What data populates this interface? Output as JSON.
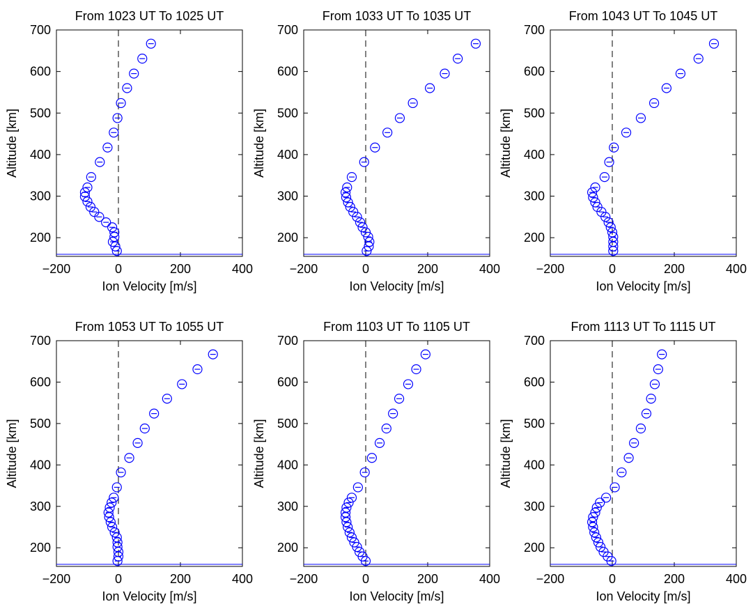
{
  "chart_data": [
    {
      "type": "scatter",
      "title": "From 1023 UT To 1025 UT",
      "xlabel": "Ion Velocity [m/s]",
      "ylabel": "Altitude [km]",
      "xlim": [
        -200,
        400
      ],
      "ylim": [
        155,
        700
      ],
      "xticks": [
        -200,
        0,
        200,
        400
      ],
      "yticks": [
        200,
        300,
        400,
        500,
        600,
        700
      ],
      "zero_line_x": 0,
      "baseline_y": 160,
      "marker": "open-circle-with-errorbar",
      "color": "#0000ff",
      "points": [
        {
          "x": 105,
          "y": 667
        },
        {
          "x": 77,
          "y": 631
        },
        {
          "x": 50,
          "y": 595
        },
        {
          "x": 28,
          "y": 560
        },
        {
          "x": 8,
          "y": 524
        },
        {
          "x": -3,
          "y": 488
        },
        {
          "x": -15,
          "y": 453
        },
        {
          "x": -35,
          "y": 417
        },
        {
          "x": -60,
          "y": 382
        },
        {
          "x": -88,
          "y": 346
        },
        {
          "x": -100,
          "y": 321
        },
        {
          "x": -108,
          "y": 309
        },
        {
          "x": -108,
          "y": 299
        },
        {
          "x": -100,
          "y": 287
        },
        {
          "x": -90,
          "y": 274
        },
        {
          "x": -78,
          "y": 262
        },
        {
          "x": -62,
          "y": 250
        },
        {
          "x": -40,
          "y": 237
        },
        {
          "x": -20,
          "y": 225
        },
        {
          "x": -13,
          "y": 213
        },
        {
          "x": -13,
          "y": 202
        },
        {
          "x": -18,
          "y": 190
        },
        {
          "x": -10,
          "y": 179
        },
        {
          "x": -5,
          "y": 168
        }
      ]
    },
    {
      "type": "scatter",
      "title": "From 1033 UT To 1035 UT",
      "xlabel": "Ion Velocity [m/s]",
      "ylabel": "Altitude [km]",
      "xlim": [
        -200,
        400
      ],
      "ylim": [
        155,
        700
      ],
      "xticks": [
        -200,
        0,
        200,
        400
      ],
      "yticks": [
        200,
        300,
        400,
        500,
        600,
        700
      ],
      "zero_line_x": 0,
      "baseline_y": 160,
      "marker": "open-circle-with-errorbar",
      "color": "#0000ff",
      "points": [
        {
          "x": 355,
          "y": 667
        },
        {
          "x": 297,
          "y": 631
        },
        {
          "x": 255,
          "y": 595
        },
        {
          "x": 207,
          "y": 560
        },
        {
          "x": 152,
          "y": 524
        },
        {
          "x": 110,
          "y": 488
        },
        {
          "x": 70,
          "y": 453
        },
        {
          "x": 30,
          "y": 417
        },
        {
          "x": -5,
          "y": 382
        },
        {
          "x": -45,
          "y": 346
        },
        {
          "x": -60,
          "y": 321
        },
        {
          "x": -65,
          "y": 309
        },
        {
          "x": -63,
          "y": 297
        },
        {
          "x": -57,
          "y": 285
        },
        {
          "x": -50,
          "y": 274
        },
        {
          "x": -40,
          "y": 262
        },
        {
          "x": -28,
          "y": 250
        },
        {
          "x": -18,
          "y": 237
        },
        {
          "x": -10,
          "y": 225
        },
        {
          "x": 0,
          "y": 213
        },
        {
          "x": 8,
          "y": 202
        },
        {
          "x": 12,
          "y": 190
        },
        {
          "x": 10,
          "y": 179
        },
        {
          "x": 3,
          "y": 168
        }
      ]
    },
    {
      "type": "scatter",
      "title": "From 1043 UT To 1045 UT",
      "xlabel": "Ion Velocity [m/s]",
      "ylabel": "Altitude [km]",
      "xlim": [
        -200,
        400
      ],
      "ylim": [
        155,
        700
      ],
      "xticks": [
        -200,
        0,
        200,
        400
      ],
      "yticks": [
        200,
        300,
        400,
        500,
        600,
        700
      ],
      "zero_line_x": 0,
      "baseline_y": 160,
      "marker": "open-circle-with-errorbar",
      "color": "#0000ff",
      "points": [
        {
          "x": 328,
          "y": 667
        },
        {
          "x": 278,
          "y": 631
        },
        {
          "x": 220,
          "y": 595
        },
        {
          "x": 175,
          "y": 560
        },
        {
          "x": 135,
          "y": 524
        },
        {
          "x": 92,
          "y": 488
        },
        {
          "x": 45,
          "y": 453
        },
        {
          "x": 5,
          "y": 417
        },
        {
          "x": -10,
          "y": 382
        },
        {
          "x": -25,
          "y": 346
        },
        {
          "x": -55,
          "y": 321
        },
        {
          "x": -65,
          "y": 309
        },
        {
          "x": -62,
          "y": 297
        },
        {
          "x": -55,
          "y": 285
        },
        {
          "x": -48,
          "y": 274
        },
        {
          "x": -35,
          "y": 262
        },
        {
          "x": -22,
          "y": 250
        },
        {
          "x": -12,
          "y": 237
        },
        {
          "x": -5,
          "y": 225
        },
        {
          "x": 0,
          "y": 213
        },
        {
          "x": 3,
          "y": 202
        },
        {
          "x": 3,
          "y": 190
        },
        {
          "x": 3,
          "y": 179
        },
        {
          "x": 3,
          "y": 168
        }
      ]
    },
    {
      "type": "scatter",
      "title": "From 1053 UT To 1055 UT",
      "xlabel": "Ion Velocity [m/s]",
      "ylabel": "Altitude [km]",
      "xlim": [
        -200,
        400
      ],
      "ylim": [
        155,
        700
      ],
      "xticks": [
        -200,
        0,
        200,
        400
      ],
      "yticks": [
        200,
        300,
        400,
        500,
        600,
        700
      ],
      "zero_line_x": 0,
      "baseline_y": 160,
      "marker": "open-circle-with-errorbar",
      "color": "#0000ff",
      "points": [
        {
          "x": 305,
          "y": 667
        },
        {
          "x": 255,
          "y": 631
        },
        {
          "x": 205,
          "y": 595
        },
        {
          "x": 157,
          "y": 560
        },
        {
          "x": 115,
          "y": 524
        },
        {
          "x": 85,
          "y": 488
        },
        {
          "x": 62,
          "y": 453
        },
        {
          "x": 35,
          "y": 417
        },
        {
          "x": 8,
          "y": 382
        },
        {
          "x": -5,
          "y": 346
        },
        {
          "x": -15,
          "y": 321
        },
        {
          "x": -22,
          "y": 309
        },
        {
          "x": -28,
          "y": 297
        },
        {
          "x": -32,
          "y": 285
        },
        {
          "x": -30,
          "y": 274
        },
        {
          "x": -25,
          "y": 262
        },
        {
          "x": -20,
          "y": 250
        },
        {
          "x": -12,
          "y": 237
        },
        {
          "x": -5,
          "y": 225
        },
        {
          "x": -3,
          "y": 213
        },
        {
          "x": -3,
          "y": 202
        },
        {
          "x": 0,
          "y": 190
        },
        {
          "x": 0,
          "y": 179
        },
        {
          "x": -3,
          "y": 168
        }
      ]
    },
    {
      "type": "scatter",
      "title": "From 1103 UT To 1105 UT",
      "xlabel": "Ion Velocity [m/s]",
      "ylabel": "Altitude [km]",
      "xlim": [
        -200,
        400
      ],
      "ylim": [
        155,
        700
      ],
      "xticks": [
        -200,
        0,
        200,
        400
      ],
      "yticks": [
        200,
        300,
        400,
        500,
        600,
        700
      ],
      "zero_line_x": 0,
      "baseline_y": 160,
      "marker": "open-circle-with-errorbar",
      "color": "#0000ff",
      "points": [
        {
          "x": 193,
          "y": 667
        },
        {
          "x": 163,
          "y": 631
        },
        {
          "x": 137,
          "y": 595
        },
        {
          "x": 108,
          "y": 560
        },
        {
          "x": 88,
          "y": 524
        },
        {
          "x": 67,
          "y": 488
        },
        {
          "x": 45,
          "y": 453
        },
        {
          "x": 20,
          "y": 417
        },
        {
          "x": -3,
          "y": 382
        },
        {
          "x": -25,
          "y": 346
        },
        {
          "x": -45,
          "y": 321
        },
        {
          "x": -55,
          "y": 309
        },
        {
          "x": -62,
          "y": 297
        },
        {
          "x": -65,
          "y": 285
        },
        {
          "x": -65,
          "y": 274
        },
        {
          "x": -62,
          "y": 262
        },
        {
          "x": -58,
          "y": 250
        },
        {
          "x": -52,
          "y": 237
        },
        {
          "x": -45,
          "y": 225
        },
        {
          "x": -37,
          "y": 213
        },
        {
          "x": -28,
          "y": 202
        },
        {
          "x": -20,
          "y": 190
        },
        {
          "x": -10,
          "y": 179
        },
        {
          "x": 0,
          "y": 168
        }
      ]
    },
    {
      "type": "scatter",
      "title": "From 1113 UT To 1115 UT",
      "xlabel": "Ion Velocity [m/s]",
      "ylabel": "Altitude [km]",
      "xlim": [
        -200,
        400
      ],
      "ylim": [
        155,
        700
      ],
      "xticks": [
        -200,
        0,
        200,
        400
      ],
      "yticks": [
        200,
        300,
        400,
        500,
        600,
        700
      ],
      "zero_line_x": 0,
      "baseline_y": 160,
      "marker": "open-circle-with-errorbar",
      "color": "#0000ff",
      "points": [
        {
          "x": 160,
          "y": 667
        },
        {
          "x": 148,
          "y": 631
        },
        {
          "x": 137,
          "y": 595
        },
        {
          "x": 125,
          "y": 560
        },
        {
          "x": 110,
          "y": 524
        },
        {
          "x": 92,
          "y": 488
        },
        {
          "x": 70,
          "y": 453
        },
        {
          "x": 53,
          "y": 417
        },
        {
          "x": 30,
          "y": 382
        },
        {
          "x": 8,
          "y": 346
        },
        {
          "x": -20,
          "y": 321
        },
        {
          "x": -40,
          "y": 309
        },
        {
          "x": -50,
          "y": 297
        },
        {
          "x": -55,
          "y": 285
        },
        {
          "x": -62,
          "y": 274
        },
        {
          "x": -65,
          "y": 262
        },
        {
          "x": -62,
          "y": 250
        },
        {
          "x": -58,
          "y": 237
        },
        {
          "x": -52,
          "y": 225
        },
        {
          "x": -45,
          "y": 213
        },
        {
          "x": -38,
          "y": 202
        },
        {
          "x": -28,
          "y": 190
        },
        {
          "x": -15,
          "y": 179
        },
        {
          "x": -3,
          "y": 168
        }
      ]
    }
  ]
}
